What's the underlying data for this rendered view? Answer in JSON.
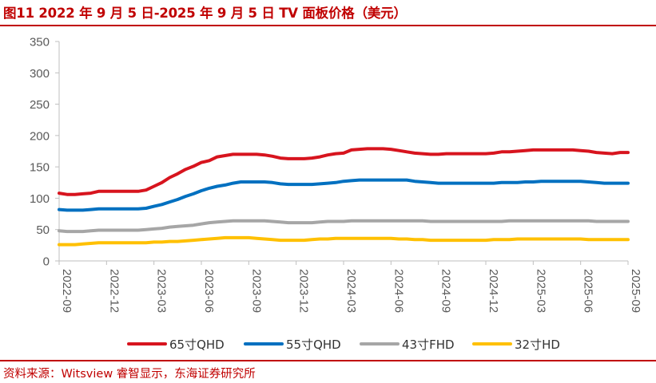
{
  "header": {
    "title": "图11  2022 年 9 月 5 日-2025 年 9 月 5 日 TV 面板价格（美元）"
  },
  "footer": {
    "source": "资料来源：Witsview 睿智显示，东海证券研究所"
  },
  "chart_data": {
    "type": "line",
    "title": "2022 年 9 月 5 日-2025 年 9 月 5 日 TV 面板价格（美元）",
    "xlabel": "",
    "ylabel": "",
    "ylim": [
      0,
      350
    ],
    "yticks": [
      "0",
      "50",
      "100",
      "150",
      "200",
      "250",
      "300",
      "350"
    ],
    "ytick_values": [
      0,
      50,
      100,
      150,
      200,
      250,
      300,
      350
    ],
    "xticks": [
      "2022-09",
      "2022-12",
      "2023-03",
      "2023-06",
      "2023-09",
      "2023-12",
      "2024-03",
      "2024-06",
      "2024-09",
      "2024-12",
      "2025-03",
      "2025-06",
      "2025-09"
    ],
    "x_domain": [
      0,
      36
    ],
    "grid": false,
    "legend_position": "bottom",
    "series": [
      {
        "name": "65寸QHD",
        "color": "#d7141e",
        "x": [
          0,
          0.5,
          1,
          1.5,
          2,
          2.5,
          3,
          3.5,
          4,
          4.5,
          5,
          5.5,
          6,
          6.5,
          7,
          7.5,
          8,
          8.5,
          9,
          9.5,
          10,
          10.5,
          11,
          11.5,
          12,
          12.5,
          13,
          13.5,
          14,
          14.5,
          15,
          15.5,
          16,
          16.5,
          17,
          17.5,
          18,
          18.5,
          19,
          19.5,
          20,
          20.5,
          21,
          21.5,
          22,
          22.5,
          23,
          23.5,
          24,
          24.5,
          25,
          25.5,
          26,
          26.5,
          27,
          27.5,
          28,
          28.5,
          29,
          29.5,
          30,
          30.5,
          31,
          31.5,
          32,
          32.5,
          33,
          33.5,
          34,
          34.5,
          35,
          35.5,
          36
        ],
        "values": [
          108,
          106,
          106,
          107,
          108,
          111,
          111,
          111,
          111,
          111,
          111,
          113,
          119,
          125,
          133,
          139,
          146,
          151,
          157,
          160,
          166,
          168,
          170,
          170,
          170,
          170,
          169,
          167,
          164,
          163,
          163,
          163,
          164,
          166,
          169,
          171,
          172,
          177,
          178,
          179,
          179,
          179,
          178,
          176,
          174,
          172,
          171,
          170,
          170,
          171,
          171,
          171,
          171,
          171,
          171,
          172,
          174,
          174,
          175,
          176,
          177,
          177,
          177,
          177,
          177,
          177,
          176,
          175,
          173,
          172,
          171,
          173,
          173
        ]
      },
      {
        "name": "55寸QHD",
        "color": "#0070c0",
        "x": [
          0,
          0.5,
          1,
          1.5,
          2,
          2.5,
          3,
          3.5,
          4,
          4.5,
          5,
          5.5,
          6,
          6.5,
          7,
          7.5,
          8,
          8.5,
          9,
          9.5,
          10,
          10.5,
          11,
          11.5,
          12,
          12.5,
          13,
          13.5,
          14,
          14.5,
          15,
          15.5,
          16,
          16.5,
          17,
          17.5,
          18,
          18.5,
          19,
          19.5,
          20,
          20.5,
          21,
          21.5,
          22,
          22.5,
          23,
          23.5,
          24,
          24.5,
          25,
          25.5,
          26,
          26.5,
          27,
          27.5,
          28,
          28.5,
          29,
          29.5,
          30,
          30.5,
          31,
          31.5,
          32,
          32.5,
          33,
          33.5,
          34,
          34.5,
          35,
          35.5,
          36
        ],
        "values": [
          82,
          81,
          81,
          81,
          82,
          83,
          83,
          83,
          83,
          83,
          83,
          84,
          87,
          90,
          94,
          98,
          103,
          107,
          112,
          116,
          119,
          121,
          124,
          126,
          126,
          126,
          126,
          125,
          123,
          122,
          122,
          122,
          122,
          123,
          124,
          125,
          127,
          128,
          129,
          129,
          129,
          129,
          129,
          129,
          129,
          127,
          126,
          125,
          124,
          124,
          124,
          124,
          124,
          124,
          124,
          124,
          125,
          125,
          125,
          126,
          126,
          127,
          127,
          127,
          127,
          127,
          127,
          126,
          125,
          124,
          124,
          124,
          124
        ]
      },
      {
        "name": "43寸FHD",
        "color": "#a6a6a6",
        "x": [
          0,
          0.5,
          1,
          1.5,
          2,
          2.5,
          3,
          3.5,
          4,
          4.5,
          5,
          5.5,
          6,
          6.5,
          7,
          7.5,
          8,
          8.5,
          9,
          9.5,
          10,
          10.5,
          11,
          11.5,
          12,
          12.5,
          13,
          13.5,
          14,
          14.5,
          15,
          15.5,
          16,
          16.5,
          17,
          17.5,
          18,
          18.5,
          19,
          19.5,
          20,
          20.5,
          21,
          21.5,
          22,
          22.5,
          23,
          23.5,
          24,
          24.5,
          25,
          25.5,
          26,
          26.5,
          27,
          27.5,
          28,
          28.5,
          29,
          29.5,
          30,
          30.5,
          31,
          31.5,
          32,
          32.5,
          33,
          33.5,
          34,
          34.5,
          35,
          35.5,
          36
        ],
        "values": [
          48,
          47,
          47,
          47,
          48,
          49,
          49,
          49,
          49,
          49,
          49,
          50,
          51,
          52,
          54,
          55,
          56,
          57,
          59,
          61,
          62,
          63,
          64,
          64,
          64,
          64,
          64,
          63,
          62,
          61,
          61,
          61,
          61,
          62,
          63,
          63,
          63,
          64,
          64,
          64,
          64,
          64,
          64,
          64,
          64,
          64,
          64,
          63,
          63,
          63,
          63,
          63,
          63,
          63,
          63,
          63,
          63,
          64,
          64,
          64,
          64,
          64,
          64,
          64,
          64,
          64,
          64,
          64,
          63,
          63,
          63,
          63,
          63
        ]
      },
      {
        "name": "32寸HD",
        "color": "#ffc000",
        "x": [
          0,
          0.5,
          1,
          1.5,
          2,
          2.5,
          3,
          3.5,
          4,
          4.5,
          5,
          5.5,
          6,
          6.5,
          7,
          7.5,
          8,
          8.5,
          9,
          9.5,
          10,
          10.5,
          11,
          11.5,
          12,
          12.5,
          13,
          13.5,
          14,
          14.5,
          15,
          15.5,
          16,
          16.5,
          17,
          17.5,
          18,
          18.5,
          19,
          19.5,
          20,
          20.5,
          21,
          21.5,
          22,
          22.5,
          23,
          23.5,
          24,
          24.5,
          25,
          25.5,
          26,
          26.5,
          27,
          27.5,
          28,
          28.5,
          29,
          29.5,
          30,
          30.5,
          31,
          31.5,
          32,
          32.5,
          33,
          33.5,
          34,
          34.5,
          35,
          35.5,
          36
        ],
        "values": [
          26,
          26,
          26,
          27,
          28,
          29,
          29,
          29,
          29,
          29,
          29,
          29,
          30,
          30,
          31,
          31,
          32,
          33,
          34,
          35,
          36,
          37,
          37,
          37,
          37,
          36,
          35,
          34,
          33,
          33,
          33,
          33,
          34,
          35,
          35,
          36,
          36,
          36,
          36,
          36,
          36,
          36,
          36,
          35,
          35,
          34,
          34,
          33,
          33,
          33,
          33,
          33,
          33,
          33,
          33,
          34,
          34,
          34,
          35,
          35,
          35,
          35,
          35,
          35,
          35,
          35,
          35,
          34,
          34,
          34,
          34,
          34,
          34
        ]
      }
    ]
  }
}
